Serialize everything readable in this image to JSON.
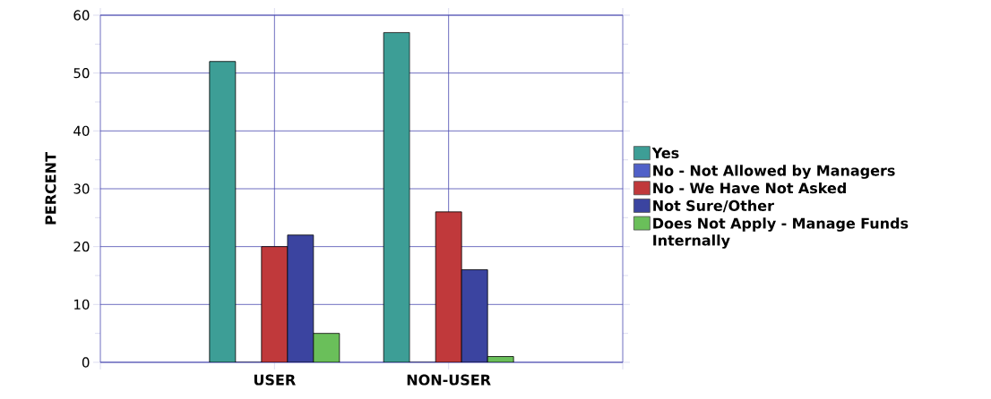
{
  "chart_data": {
    "type": "bar",
    "ylabel": "PERCENT",
    "categories": [
      "USER",
      "NON-USER"
    ],
    "series": [
      {
        "name": "Yes",
        "color": "#3d9e96",
        "values": [
          52,
          57
        ]
      },
      {
        "name": "No - Not Allowed by Managers",
        "color": "#5060c8",
        "values": [
          0,
          0
        ]
      },
      {
        "name": "No - We Have Not Asked",
        "color": "#c0393b",
        "values": [
          20,
          26
        ]
      },
      {
        "name": "Not Sure/Other",
        "color": "#3b44a0",
        "values": [
          22,
          16
        ]
      },
      {
        "name": "Does Not Apply - Manage Funds Internally",
        "color": "#6abf5a",
        "values": [
          5,
          1
        ]
      }
    ],
    "ylim": [
      0,
      60
    ],
    "yticks": [
      0,
      10,
      20,
      30,
      40,
      50,
      60
    ],
    "grid": true,
    "legend": "right"
  }
}
